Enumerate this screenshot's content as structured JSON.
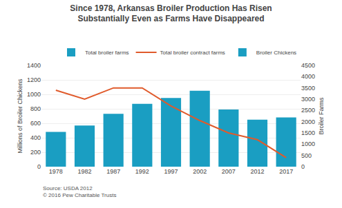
{
  "chart_data": {
    "type": "bar",
    "title": "Since 1978, Arkansas Broiler Production Has Risen\nSubstantially Even as Farms Have Disappeared",
    "categories": [
      "1978",
      "1982",
      "1987",
      "1992",
      "1997",
      "2002",
      "2007",
      "2012",
      "2017"
    ],
    "series": [
      {
        "name": "Total broiler farms",
        "type": "bar",
        "color": "#1a9ec2",
        "values": [
          480,
          570,
          730,
          870,
          950,
          1050,
          790,
          650,
          680
        ]
      },
      {
        "name": "Total broiler contract farms",
        "type": "line",
        "color": "#e05a2b",
        "axis": "y2",
        "values": [
          3400,
          3000,
          3500,
          3500,
          2700,
          2050,
          1500,
          1200,
          400
        ]
      },
      {
        "name": "Broiler Chickens",
        "type": "bar",
        "color": "#1a9ec2",
        "values": [
          null,
          null,
          null,
          null,
          null,
          null,
          null,
          null,
          null
        ]
      }
    ],
    "ylabel": "Millions of Broiler Chickens",
    "y2label": "Broiler Farms",
    "ylim": [
      0,
      1400
    ],
    "yticks": [
      0,
      200,
      400,
      600,
      800,
      1000,
      1200,
      1400
    ],
    "y2lim": [
      0,
      4500
    ],
    "y2ticks": [
      0,
      500,
      1000,
      1500,
      2000,
      2500,
      3000,
      3500,
      4000,
      4500
    ],
    "grid": true,
    "legend": "upper right",
    "annotations": [
      "Source: USDA 2012\n© 2016 Pew Charitable Trusts"
    ]
  }
}
